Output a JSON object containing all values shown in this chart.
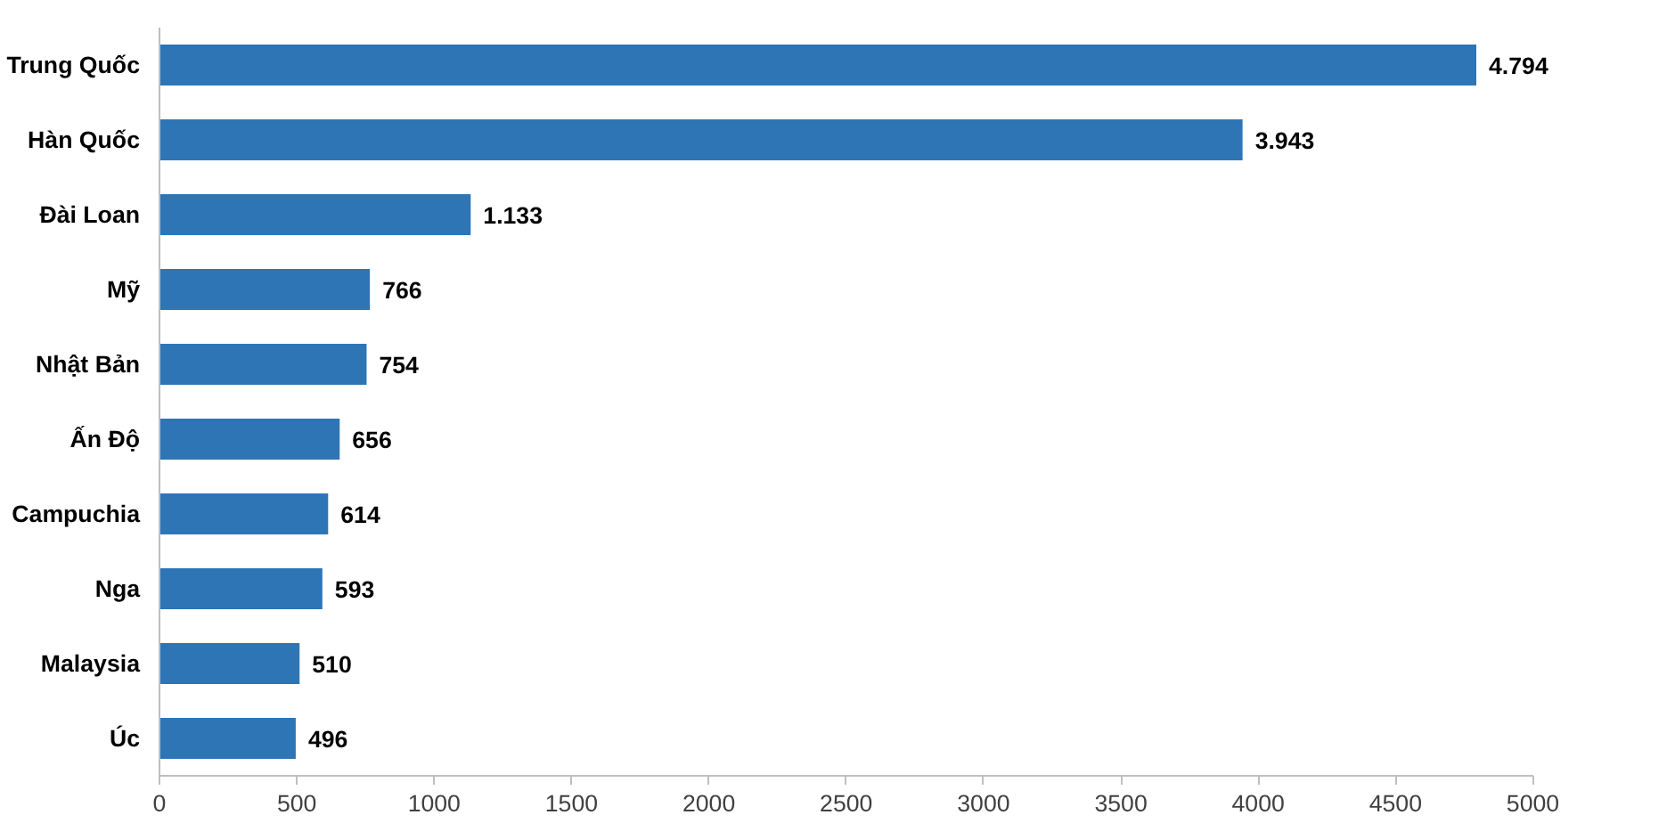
{
  "chart_data": {
    "type": "bar",
    "orientation": "horizontal",
    "categories": [
      "Trung Quốc",
      "Hàn Quốc",
      "Đài Loan",
      "Mỹ",
      "Nhật Bản",
      "Ấn Độ",
      "Campuchia",
      "Nga",
      "Malaysia",
      "Úc"
    ],
    "values": [
      4794,
      3943,
      1133,
      766,
      754,
      656,
      614,
      593,
      510,
      496
    ],
    "value_labels": [
      "4.794",
      "3.943",
      "1.133",
      "766",
      "754",
      "656",
      "614",
      "593",
      "510",
      "496"
    ],
    "color": "#2e75b6",
    "xlim": [
      0,
      5000
    ],
    "xticks": [
      0,
      500,
      1000,
      1500,
      2000,
      2500,
      3000,
      3500,
      4000,
      4500,
      5000
    ],
    "grid": false
  }
}
